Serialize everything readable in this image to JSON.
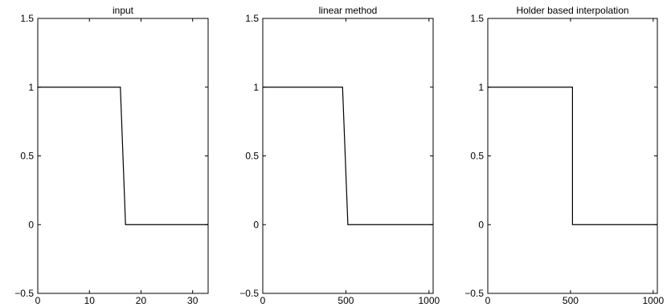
{
  "chart_data": [
    {
      "type": "line",
      "title": "input",
      "xlim": [
        0,
        33
      ],
      "ylim": [
        -0.5,
        1.5
      ],
      "xticks": [
        0,
        10,
        20,
        30
      ],
      "yticks": [
        -0.5,
        0,
        0.5,
        1,
        1.5
      ],
      "xtick_labels": [
        "0",
        "10",
        "20",
        "30"
      ],
      "ytick_labels": [
        "−0.5",
        "0",
        "0.5",
        "1",
        "1.5"
      ],
      "grid": false,
      "series": [
        {
          "x": [
            0,
            16,
            17,
            33
          ],
          "y": [
            1,
            1,
            0,
            0
          ]
        }
      ]
    },
    {
      "type": "line",
      "title": "linear method",
      "xlim": [
        0,
        1025
      ],
      "ylim": [
        -0.5,
        1.5
      ],
      "xticks": [
        0,
        500,
        1000
      ],
      "yticks": [
        -0.5,
        0,
        0.5,
        1,
        1.5
      ],
      "xtick_labels": [
        "0",
        "500",
        "1000"
      ],
      "ytick_labels": [
        "−0.5",
        "0",
        "0.5",
        "1",
        "1.5"
      ],
      "grid": false,
      "series": [
        {
          "x": [
            0,
            480,
            512,
            1025
          ],
          "y": [
            1,
            1,
            0,
            0
          ]
        }
      ]
    },
    {
      "type": "line",
      "title": "Holder based interpolation",
      "xlim": [
        0,
        1025
      ],
      "ylim": [
        -0.5,
        1.5
      ],
      "xticks": [
        0,
        500,
        1000
      ],
      "yticks": [
        -0.5,
        0,
        0.5,
        1,
        1.5
      ],
      "xtick_labels": [
        "0",
        "500",
        "1000"
      ],
      "ytick_labels": [
        "−0.5",
        "0",
        "0.5",
        "1",
        "1.5"
      ],
      "grid": false,
      "series": [
        {
          "x": [
            0,
            512,
            512,
            1025
          ],
          "y": [
            1,
            1,
            0,
            0
          ]
        }
      ]
    }
  ]
}
